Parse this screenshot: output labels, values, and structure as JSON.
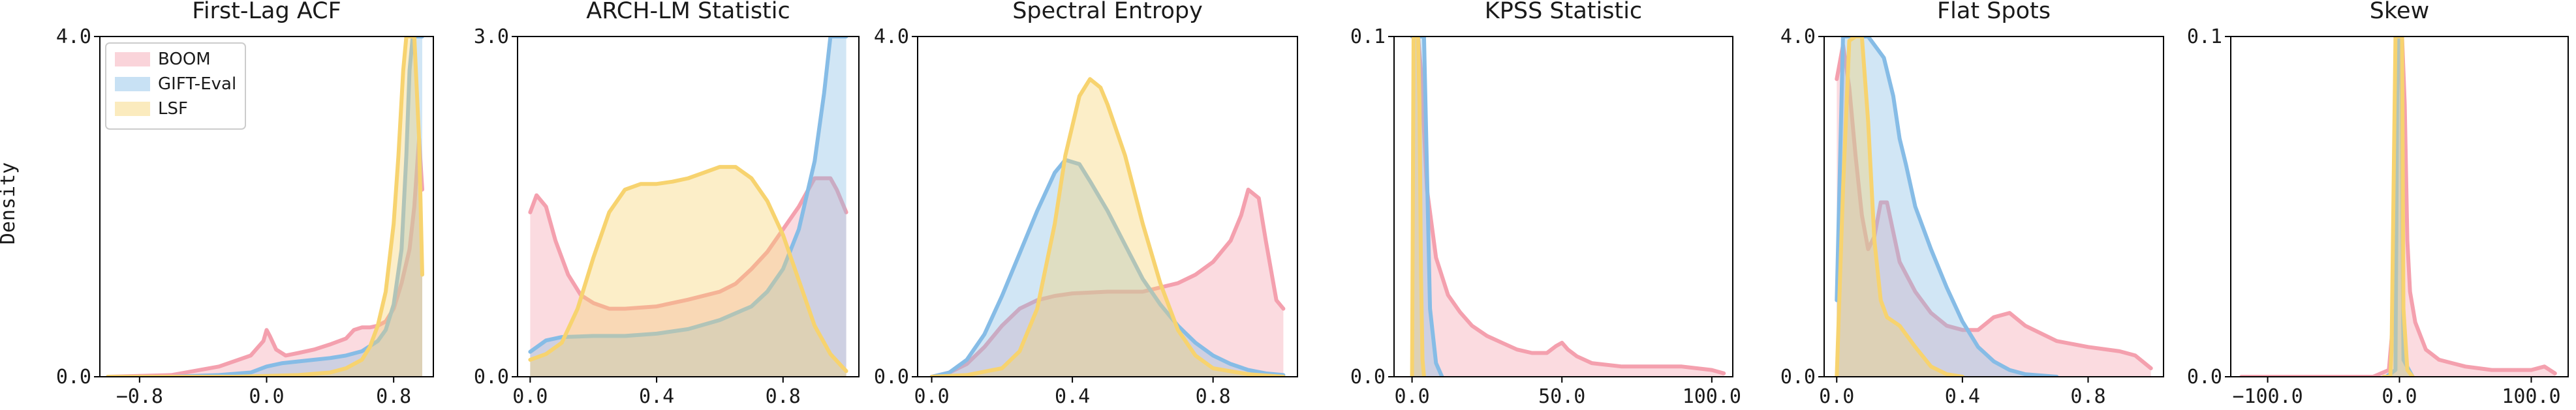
{
  "figure": {
    "ylabel": "Density",
    "legend": {
      "placement": "upper-left of first panel",
      "entries": [
        "BOOM",
        "GIFT-Eval",
        "LSF"
      ]
    }
  },
  "colors": {
    "BOOM": "#f4a0ae",
    "GIFT-Eval": "#86bce6",
    "LSF": "#f7d36f"
  },
  "chart_data": [
    {
      "type": "area",
      "title": "First-Lag ACF",
      "xlim": [
        -1.05,
        1.05
      ],
      "ylim": [
        0,
        4.0
      ],
      "xticks": [
        -0.8,
        0.0,
        0.8
      ],
      "xtick_labels": [
        "−0.8",
        "0.0",
        "0.8"
      ],
      "yticks": [
        0,
        4.0
      ],
      "ytick_labels": [
        "0.0",
        "4.0"
      ],
      "series": [
        {
          "name": "BOOM",
          "x": [
            -1.0,
            -0.6,
            -0.3,
            -0.1,
            -0.02,
            0.0,
            0.02,
            0.06,
            0.12,
            0.2,
            0.3,
            0.4,
            0.5,
            0.55,
            0.6,
            0.65,
            0.7,
            0.75,
            0.8,
            0.85,
            0.9,
            0.93,
            0.96,
            0.98
          ],
          "y": [
            0.0,
            0.02,
            0.12,
            0.25,
            0.42,
            0.55,
            0.48,
            0.32,
            0.25,
            0.28,
            0.32,
            0.38,
            0.45,
            0.55,
            0.58,
            0.58,
            0.6,
            0.65,
            0.8,
            1.1,
            1.5,
            2.0,
            2.8,
            2.2
          ]
        },
        {
          "name": "GIFT-Eval",
          "x": [
            -1.0,
            -0.6,
            -0.3,
            -0.1,
            0.0,
            0.1,
            0.2,
            0.3,
            0.4,
            0.5,
            0.6,
            0.7,
            0.75,
            0.8,
            0.85,
            0.88,
            0.9,
            0.92,
            0.95,
            0.98
          ],
          "y": [
            0.0,
            0.0,
            0.02,
            0.05,
            0.12,
            0.16,
            0.18,
            0.2,
            0.22,
            0.25,
            0.3,
            0.42,
            0.55,
            0.85,
            1.5,
            2.6,
            3.6,
            4.0,
            4.0,
            4.0
          ]
        },
        {
          "name": "LSF",
          "x": [
            -1.0,
            -0.5,
            -0.2,
            0.0,
            0.2,
            0.4,
            0.5,
            0.6,
            0.65,
            0.7,
            0.75,
            0.8,
            0.83,
            0.86,
            0.88,
            0.9,
            0.93,
            0.96,
            0.98
          ],
          "y": [
            0.0,
            0.0,
            0.0,
            0.01,
            0.02,
            0.05,
            0.1,
            0.2,
            0.35,
            0.6,
            1.0,
            1.8,
            2.6,
            3.6,
            4.0,
            4.0,
            4.0,
            2.8,
            1.2
          ]
        }
      ]
    },
    {
      "type": "area",
      "title": "ARCH-LM Statistic",
      "xlim": [
        -0.04,
        1.04
      ],
      "ylim": [
        0,
        3.0
      ],
      "xticks": [
        0.0,
        0.4,
        0.8
      ],
      "xtick_labels": [
        "0.0",
        "0.4",
        "0.8"
      ],
      "yticks": [
        0,
        3.0
      ],
      "ytick_labels": [
        "0.0",
        "3.0"
      ],
      "series": [
        {
          "name": "BOOM",
          "x": [
            0.0,
            0.02,
            0.05,
            0.08,
            0.12,
            0.16,
            0.2,
            0.25,
            0.3,
            0.4,
            0.5,
            0.6,
            0.65,
            0.7,
            0.75,
            0.8,
            0.85,
            0.9,
            0.95,
            0.97,
            1.0
          ],
          "y": [
            1.45,
            1.6,
            1.5,
            1.2,
            0.9,
            0.72,
            0.65,
            0.6,
            0.6,
            0.62,
            0.68,
            0.75,
            0.82,
            0.95,
            1.1,
            1.3,
            1.5,
            1.75,
            1.75,
            1.65,
            1.45
          ]
        },
        {
          "name": "GIFT-Eval",
          "x": [
            0.0,
            0.05,
            0.1,
            0.2,
            0.3,
            0.4,
            0.5,
            0.6,
            0.7,
            0.75,
            0.8,
            0.85,
            0.9,
            0.93,
            0.95,
            0.97,
            1.0
          ],
          "y": [
            0.22,
            0.32,
            0.35,
            0.36,
            0.36,
            0.38,
            0.42,
            0.5,
            0.62,
            0.75,
            0.95,
            1.3,
            1.9,
            2.5,
            3.0,
            3.0,
            3.0
          ]
        },
        {
          "name": "LSF",
          "x": [
            0.0,
            0.05,
            0.1,
            0.15,
            0.2,
            0.25,
            0.3,
            0.35,
            0.4,
            0.45,
            0.5,
            0.55,
            0.6,
            0.65,
            0.7,
            0.75,
            0.8,
            0.85,
            0.9,
            0.95,
            1.0
          ],
          "y": [
            0.15,
            0.2,
            0.3,
            0.6,
            1.05,
            1.45,
            1.65,
            1.7,
            1.7,
            1.72,
            1.75,
            1.8,
            1.85,
            1.85,
            1.75,
            1.55,
            1.25,
            0.85,
            0.45,
            0.2,
            0.05
          ]
        }
      ]
    },
    {
      "type": "area",
      "title": "Spectral Entropy",
      "xlim": [
        -0.04,
        1.04
      ],
      "ylim": [
        0,
        4.0
      ],
      "xticks": [
        0.0,
        0.4,
        0.8
      ],
      "xtick_labels": [
        "0.0",
        "0.4",
        "0.8"
      ],
      "yticks": [
        0,
        4.0
      ],
      "ytick_labels": [
        "0.0",
        "4.0"
      ],
      "series": [
        {
          "name": "BOOM",
          "x": [
            0.0,
            0.05,
            0.1,
            0.15,
            0.2,
            0.25,
            0.3,
            0.35,
            0.4,
            0.5,
            0.6,
            0.65,
            0.7,
            0.75,
            0.8,
            0.85,
            0.88,
            0.9,
            0.93,
            0.95,
            0.98,
            1.0
          ],
          "y": [
            0.0,
            0.05,
            0.15,
            0.35,
            0.6,
            0.8,
            0.9,
            0.95,
            0.98,
            1.0,
            1.0,
            1.05,
            1.1,
            1.2,
            1.35,
            1.6,
            1.9,
            2.2,
            2.1,
            1.6,
            0.9,
            0.8
          ]
        },
        {
          "name": "GIFT-Eval",
          "x": [
            0.0,
            0.05,
            0.1,
            0.15,
            0.2,
            0.25,
            0.3,
            0.35,
            0.38,
            0.42,
            0.45,
            0.5,
            0.55,
            0.6,
            0.65,
            0.7,
            0.75,
            0.8,
            0.85,
            0.9,
            0.95,
            1.0
          ],
          "y": [
            0.0,
            0.05,
            0.2,
            0.5,
            0.95,
            1.45,
            1.95,
            2.4,
            2.55,
            2.5,
            2.3,
            1.95,
            1.55,
            1.15,
            0.85,
            0.6,
            0.4,
            0.25,
            0.15,
            0.08,
            0.04,
            0.02
          ]
        },
        {
          "name": "LSF",
          "x": [
            0.0,
            0.1,
            0.2,
            0.25,
            0.3,
            0.35,
            0.38,
            0.42,
            0.45,
            0.48,
            0.5,
            0.55,
            0.6,
            0.65,
            0.7,
            0.75,
            0.8,
            0.9,
            1.0
          ],
          "y": [
            0.0,
            0.02,
            0.1,
            0.3,
            0.8,
            1.8,
            2.6,
            3.3,
            3.5,
            3.4,
            3.2,
            2.6,
            1.8,
            1.1,
            0.55,
            0.25,
            0.1,
            0.03,
            0.0
          ]
        }
      ]
    },
    {
      "type": "area",
      "title": "KPSS Statistic",
      "xlim": [
        -6,
        107
      ],
      "ylim": [
        0,
        0.1
      ],
      "xticks": [
        0,
        50,
        100
      ],
      "xtick_labels": [
        "0.0",
        "50.0",
        "100.0"
      ],
      "yticks": [
        0,
        0.1
      ],
      "ytick_labels": [
        "0.0",
        "0.1"
      ],
      "series": [
        {
          "name": "BOOM",
          "x": [
            0.0,
            1.0,
            2.0,
            3.0,
            5.0,
            8.0,
            12.0,
            16.0,
            20.0,
            25.0,
            30.0,
            35.0,
            40.0,
            45.0,
            48.0,
            50.0,
            52.0,
            55.0,
            60.0,
            70.0,
            80.0,
            90.0,
            100.0,
            104.0
          ],
          "y": [
            0.1,
            0.1,
            0.1,
            0.09,
            0.055,
            0.035,
            0.024,
            0.019,
            0.015,
            0.012,
            0.01,
            0.008,
            0.007,
            0.007,
            0.009,
            0.01,
            0.008,
            0.006,
            0.004,
            0.003,
            0.003,
            0.003,
            0.002,
            0.001
          ]
        },
        {
          "name": "GIFT-Eval",
          "x": [
            0.0,
            1.0,
            2.0,
            3.0,
            4.0,
            5.0,
            6.0,
            8.0,
            10.0
          ],
          "y": [
            0.1,
            0.1,
            0.1,
            0.1,
            0.1,
            0.06,
            0.02,
            0.004,
            0.0
          ]
        },
        {
          "name": "LSF",
          "x": [
            0.0,
            0.5,
            1.0,
            1.5,
            2.0,
            2.5,
            3.0,
            3.5,
            4.0
          ],
          "y": [
            0.0,
            0.1,
            0.1,
            0.1,
            0.1,
            0.08,
            0.03,
            0.005,
            0.0
          ]
        }
      ]
    },
    {
      "type": "area",
      "title": "Flat Spots",
      "xlim": [
        -0.04,
        1.04
      ],
      "ylim": [
        0,
        4.0
      ],
      "xticks": [
        0.0,
        0.4,
        0.8
      ],
      "xtick_labels": [
        "0.0",
        "0.4",
        "0.8"
      ],
      "yticks": [
        0,
        4.0
      ],
      "ytick_labels": [
        "0.0",
        "4.0"
      ],
      "series": [
        {
          "name": "BOOM",
          "x": [
            0.0,
            0.02,
            0.04,
            0.06,
            0.08,
            0.1,
            0.12,
            0.14,
            0.16,
            0.18,
            0.2,
            0.25,
            0.3,
            0.35,
            0.4,
            0.45,
            0.5,
            0.55,
            0.6,
            0.7,
            0.8,
            0.9,
            0.95,
            1.0
          ],
          "y": [
            3.5,
            3.9,
            3.4,
            2.6,
            1.9,
            1.5,
            1.65,
            2.05,
            2.05,
            1.7,
            1.35,
            1.0,
            0.75,
            0.6,
            0.55,
            0.55,
            0.7,
            0.75,
            0.6,
            0.42,
            0.35,
            0.3,
            0.25,
            0.1
          ]
        },
        {
          "name": "GIFT-Eval",
          "x": [
            0.0,
            0.02,
            0.05,
            0.1,
            0.15,
            0.18,
            0.2,
            0.22,
            0.25,
            0.3,
            0.35,
            0.4,
            0.45,
            0.5,
            0.55,
            0.6,
            0.7
          ],
          "y": [
            0.9,
            4.0,
            4.0,
            4.0,
            3.75,
            3.3,
            2.8,
            2.5,
            2.0,
            1.5,
            1.05,
            0.65,
            0.35,
            0.18,
            0.08,
            0.03,
            0.0
          ]
        },
        {
          "name": "LSF",
          "x": [
            0.0,
            0.02,
            0.04,
            0.06,
            0.08,
            0.1,
            0.12,
            0.14,
            0.16,
            0.2,
            0.25,
            0.3,
            0.35,
            0.4
          ],
          "y": [
            0.0,
            2.2,
            3.95,
            4.0,
            4.0,
            3.0,
            1.6,
            0.9,
            0.7,
            0.6,
            0.35,
            0.12,
            0.03,
            0.0
          ]
        }
      ]
    },
    {
      "type": "area",
      "title": "Skew",
      "xlim": [
        -128,
        128
      ],
      "ylim": [
        0,
        0.1
      ],
      "xticks": [
        -100,
        0,
        100
      ],
      "xtick_labels": [
        "−100.0",
        "0.0",
        "100.0"
      ],
      "yticks": [
        0,
        0.1
      ],
      "ytick_labels": [
        "0.0",
        "0.1"
      ],
      "series": [
        {
          "name": "BOOM",
          "x": [
            -120.0,
            -60.0,
            -20.0,
            -8.0,
            -4.0,
            -2.0,
            0.0,
            2.0,
            4.0,
            6.0,
            8.0,
            12.0,
            20.0,
            30.0,
            40.0,
            50.0,
            70.0,
            90.0,
            100.0,
            110.0,
            118.0
          ],
          "y": [
            0.0,
            0.0,
            0.0,
            0.002,
            0.02,
            0.08,
            0.1,
            0.1,
            0.08,
            0.04,
            0.025,
            0.016,
            0.008,
            0.005,
            0.004,
            0.003,
            0.002,
            0.002,
            0.002,
            0.003,
            0.001
          ]
        },
        {
          "name": "GIFT-Eval",
          "x": [
            -10.0,
            -3.0,
            -1.5,
            0.0,
            1.5,
            3.0,
            10.0
          ],
          "y": [
            0.0,
            0.002,
            0.1,
            0.1,
            0.1,
            0.005,
            0.0
          ]
        },
        {
          "name": "LSF",
          "x": [
            -12.0,
            -7.0,
            -6.0,
            -3.0,
            0.0,
            2.0,
            3.0,
            6.0,
            10.0
          ],
          "y": [
            0.0,
            0.0,
            0.008,
            0.1,
            0.1,
            0.1,
            0.02,
            0.002,
            0.0
          ]
        }
      ]
    }
  ]
}
